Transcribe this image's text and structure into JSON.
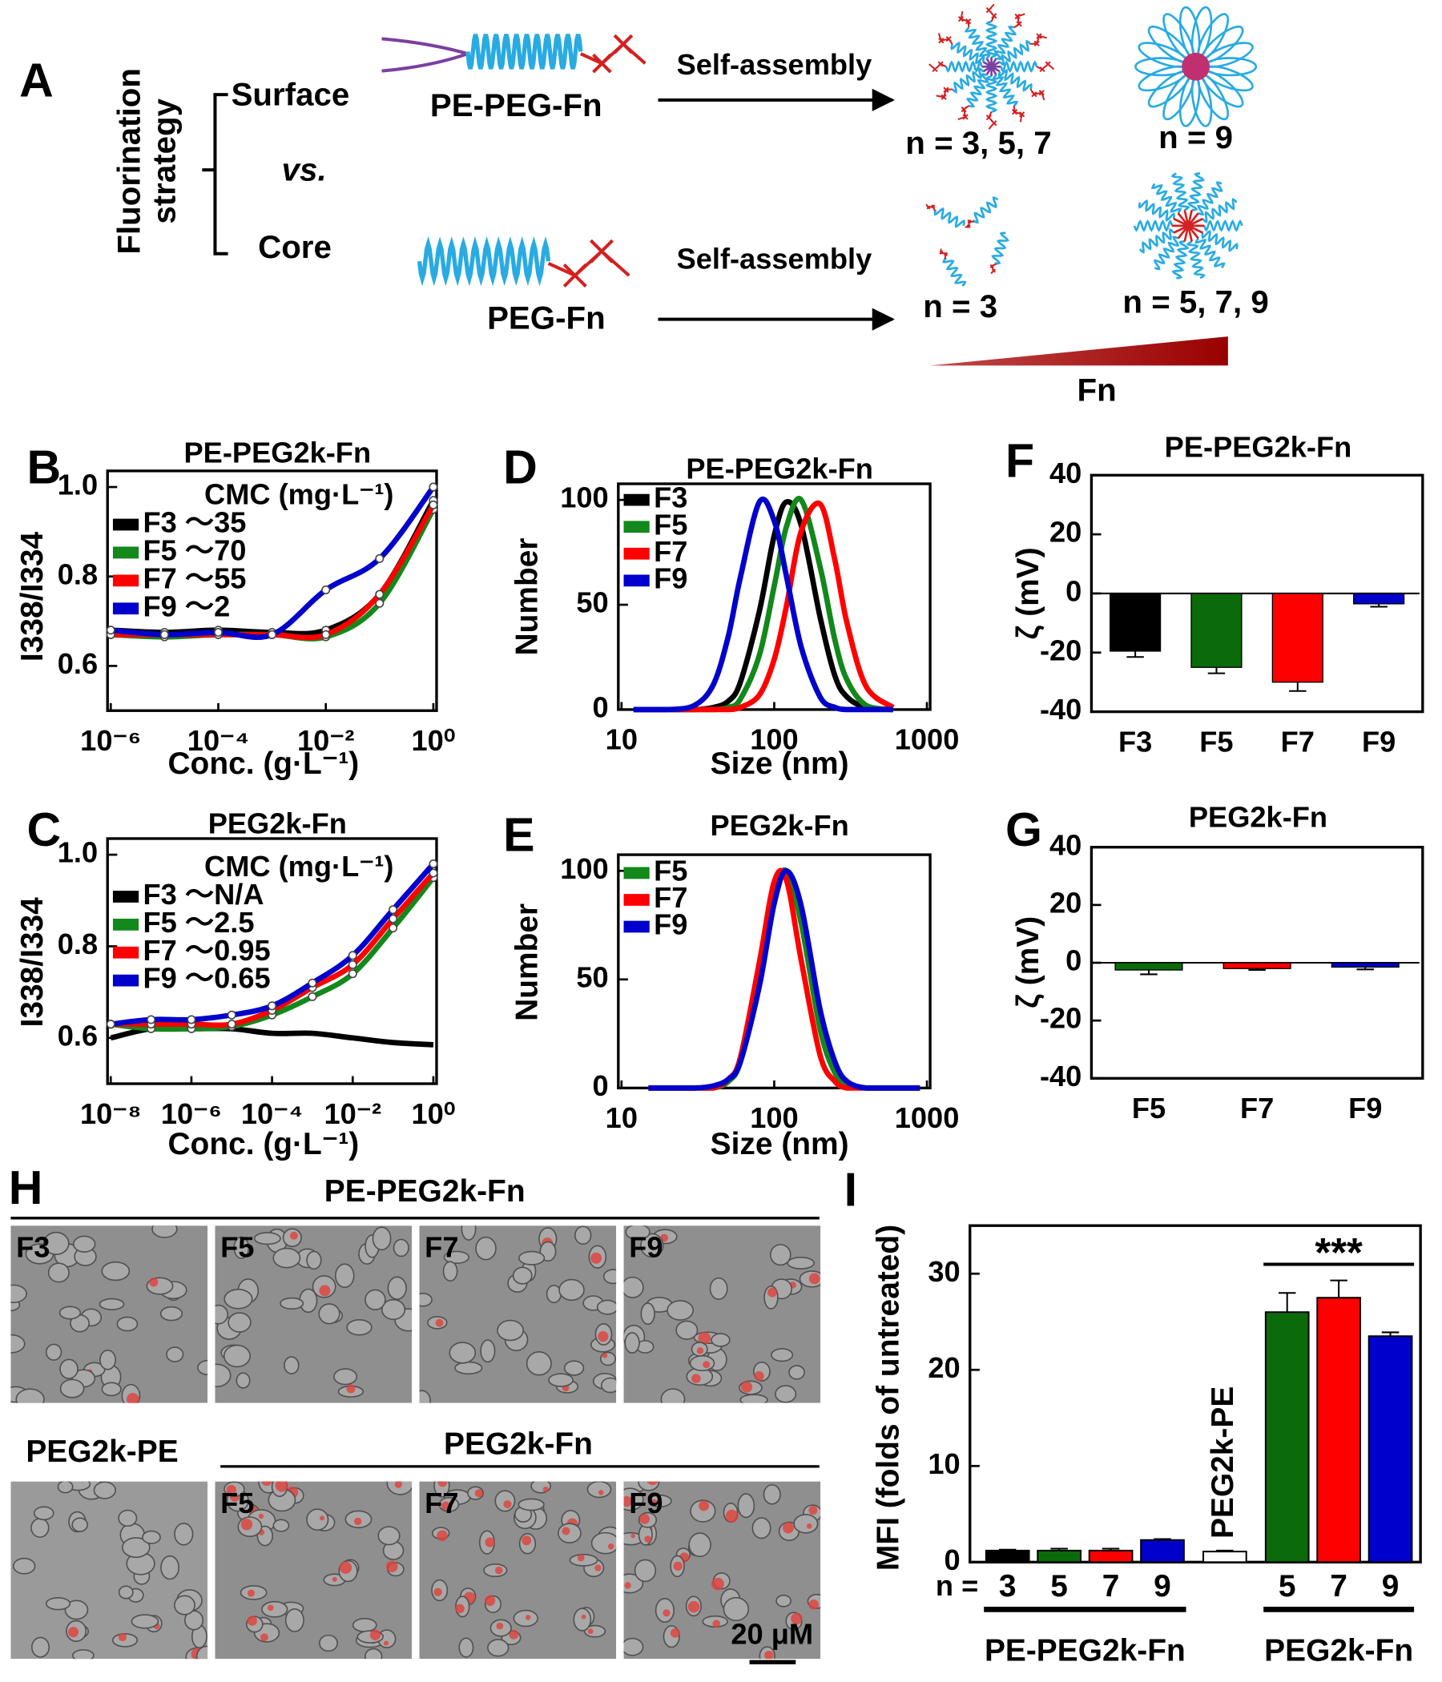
{
  "panel_a": {
    "letter": "A",
    "side_label": [
      "Fluorination",
      "strategy"
    ],
    "options": [
      "Surface",
      "vs.",
      "Core"
    ],
    "molecules": [
      "PE-PEG-Fn",
      "PEG-Fn"
    ],
    "arrow_labels": [
      "Self-assembly",
      "Self-assembly"
    ],
    "outcomes": [
      "n = 3, 5, 7",
      "n = 9",
      "n = 3",
      "n = 5, 7, 9"
    ],
    "gradient_label": "Fn"
  },
  "panel_h": {
    "letter": "H",
    "top_group": "PE-PEG2k-Fn",
    "top_images": [
      "F3",
      "F5",
      "F7",
      "F9"
    ],
    "control": "PEG2k-PE",
    "bottom_group": "PEG2k-Fn",
    "bottom_images": [
      "F5",
      "F7",
      "F9"
    ],
    "scale_bar": "20 μM"
  },
  "chart_data": [
    {
      "panel": "B",
      "type": "line",
      "title": "PE-PEG2k-Fn",
      "xlabel": "Conc. (g·L⁻¹)",
      "ylabel": "I338/I334",
      "log_x": true,
      "x": [
        1e-06,
        1e-05,
        0.0001,
        0.001,
        0.01,
        0.1,
        1
      ],
      "xlim": [
        1e-06,
        1
      ],
      "xticks": [
        {
          "value": 1e-06,
          "label": "10⁻⁶"
        },
        {
          "value": 0.0001,
          "label": "10⁻⁴"
        },
        {
          "value": 0.01,
          "label": "10⁻²"
        },
        {
          "value": 1,
          "label": "10⁰"
        }
      ],
      "ylim": [
        0.5,
        1
      ],
      "yticks": [
        0.6,
        0.8,
        {
          "value": 1,
          "label": "1.0"
        }
      ],
      "legend_title": "CMC (mg·L⁻¹)",
      "series": [
        {
          "name": "F3 ～35",
          "color": "#000000",
          "markers": true,
          "values": [
            0.68,
            0.675,
            0.68,
            0.675,
            0.68,
            0.76,
            0.97
          ]
        },
        {
          "name": "F5 ～70",
          "color": "#13881b",
          "markers": true,
          "values": [
            0.67,
            0.665,
            0.67,
            0.67,
            0.665,
            0.74,
            0.95
          ]
        },
        {
          "name": "F7 ～55",
          "color": "#ff0000",
          "markers": true,
          "values": [
            0.67,
            0.67,
            0.67,
            0.67,
            0.67,
            0.76,
            0.96
          ]
        },
        {
          "name": "F9 ～2",
          "color": "#0000cc",
          "markers": true,
          "values": [
            0.68,
            0.67,
            0.675,
            0.67,
            0.77,
            0.84,
            1
          ]
        }
      ]
    },
    {
      "panel": "C",
      "type": "line",
      "title": "PEG2k-Fn",
      "xlabel": "Conc. (g·L⁻¹)",
      "ylabel": "I338/I334",
      "log_x": true,
      "x": [
        1e-08,
        1e-07,
        1e-06,
        1e-05,
        0.0001,
        0.001,
        0.01,
        0.1,
        1
      ],
      "xlim": [
        1e-08,
        1
      ],
      "xticks": [
        {
          "value": 1e-08,
          "label": "10⁻⁸"
        },
        {
          "value": 1e-06,
          "label": "10⁻⁶"
        },
        {
          "value": 0.0001,
          "label": "10⁻⁴"
        },
        {
          "value": 0.01,
          "label": "10⁻²"
        },
        {
          "value": 1,
          "label": "10⁰"
        }
      ],
      "ylim": [
        0.5,
        1
      ],
      "yticks": [
        0.6,
        0.8,
        {
          "value": 1,
          "label": "1.0"
        }
      ],
      "legend_title": "CMC (mg·L⁻¹)",
      "series": [
        {
          "name": "F3 ～N/A",
          "color": "#000000",
          "markers": false,
          "values": [
            0.6,
            0.62,
            0.62,
            0.62,
            0.61,
            0.61,
            0.6,
            0.59,
            0.585
          ]
        },
        {
          "name": "F5 ～2.5",
          "color": "#13881b",
          "markers": true,
          "values": [
            0.63,
            0.62,
            0.62,
            0.625,
            0.65,
            0.69,
            0.74,
            0.84,
            0.95
          ]
        },
        {
          "name": "F7 ～0.95",
          "color": "#ff0000",
          "markers": true,
          "values": [
            0.63,
            0.63,
            0.63,
            0.63,
            0.66,
            0.71,
            0.76,
            0.86,
            0.96
          ]
        },
        {
          "name": "F9 ～0.65",
          "color": "#0000cc",
          "markers": true,
          "values": [
            0.63,
            0.64,
            0.64,
            0.65,
            0.67,
            0.72,
            0.78,
            0.88,
            0.98
          ]
        }
      ]
    },
    {
      "panel": "D",
      "type": "line",
      "title": "PE-PEG2k-Fn",
      "xlabel": "Size (nm)",
      "ylabel": "Number",
      "log_x": true,
      "x": [
        12,
        20,
        30,
        40,
        50,
        60,
        80,
        100,
        120,
        150,
        200,
        250,
        300,
        400,
        600
      ],
      "xlim": [
        10,
        1000
      ],
      "xticks": [
        10,
        100,
        1000
      ],
      "ylim": [
        0,
        100
      ],
      "yticks": [
        0,
        50,
        100
      ],
      "series": [
        {
          "name": "F3",
          "color": "#000000",
          "markers": false,
          "values": [
            0,
            0,
            0,
            1,
            4,
            13,
            47,
            83,
            99,
            88,
            44,
            16,
            6,
            1,
            0
          ]
        },
        {
          "name": "F5",
          "color": "#13881b",
          "markers": false,
          "values": [
            0,
            0,
            0,
            0,
            1,
            5,
            26,
            59,
            87,
            100,
            68,
            33,
            14,
            2,
            0
          ]
        },
        {
          "name": "F7",
          "color": "#ff0000",
          "markers": false,
          "values": [
            0,
            0,
            0,
            0,
            0,
            1,
            7,
            24,
            49,
            85,
            98,
            71,
            41,
            11,
            1
          ]
        },
        {
          "name": "F9",
          "color": "#0000cc",
          "markers": false,
          "values": [
            0,
            0,
            2,
            12,
            35,
            63,
            99,
            90,
            64,
            30,
            6,
            1,
            0,
            0,
            0
          ]
        }
      ]
    },
    {
      "panel": "E",
      "type": "line",
      "title": "PEG2k-Fn",
      "xlabel": "Size (nm)",
      "ylabel": "Number",
      "log_x": true,
      "x": [
        15,
        20,
        30,
        40,
        50,
        60,
        80,
        100,
        120,
        150,
        200,
        250,
        300,
        400,
        600,
        900
      ],
      "xlim": [
        10,
        1000
      ],
      "xticks": [
        10,
        100,
        1000
      ],
      "ylim": [
        0,
        100
      ],
      "yticks": [
        0,
        50,
        100
      ],
      "series": [
        {
          "name": "F5",
          "color": "#13881b",
          "markers": false,
          "values": [
            0,
            0,
            0,
            0,
            3,
            12,
            49,
            88,
            100,
            76,
            27,
            7,
            2,
            0,
            0,
            0
          ]
        },
        {
          "name": "F7",
          "color": "#ff0000",
          "markers": false,
          "values": [
            0,
            0,
            0,
            0,
            4,
            14,
            58,
            95,
            96,
            59,
            15,
            3,
            0,
            0,
            0,
            0
          ]
        },
        {
          "name": "F9",
          "color": "#0000cc",
          "markers": false,
          "values": [
            0,
            0,
            0,
            1,
            4,
            12,
            47,
            85,
            100,
            84,
            36,
            12,
            3,
            0,
            0,
            0
          ]
        }
      ]
    },
    {
      "panel": "F",
      "type": "bar",
      "title": "PE-PEG2k-Fn",
      "ylabel": "ζ (mV)",
      "categories": [
        "F3",
        "F5",
        "F7",
        "F9"
      ],
      "values": [
        -19.5,
        -25,
        -30,
        -3.5
      ],
      "errors": [
        2,
        2,
        3,
        1
      ],
      "colors": [
        "#000000",
        "#0b6b0b",
        "#ff0000",
        "#0000cc"
      ],
      "ylim": [
        -40,
        40
      ],
      "yticks": [
        -40,
        -20,
        0,
        20,
        40
      ]
    },
    {
      "panel": "G",
      "type": "bar",
      "title": "PEG2k-Fn",
      "ylabel": "ζ (mV)",
      "categories": [
        "F5",
        "F7",
        "F9"
      ],
      "values": [
        -2.5,
        -2,
        -1.5
      ],
      "errors": [
        1.5,
        0.5,
        0.8
      ],
      "colors": [
        "#0b6b0b",
        "#ff0000",
        "#0000cc"
      ],
      "ylim": [
        -40,
        40
      ],
      "yticks": [
        -40,
        -20,
        0,
        20,
        40
      ]
    },
    {
      "panel": "I",
      "type": "grouped_bar",
      "ylabel": "MFI (folds of  untreated)",
      "x_prefix": "n =",
      "ylim": [
        0,
        35
      ],
      "yticks": [
        0,
        10,
        20,
        30
      ],
      "groups": [
        {
          "name": "PE-PEG2k-Fn",
          "categories": [
            "3",
            "5",
            "7",
            "9"
          ],
          "values": [
            1.2,
            1.2,
            1.2,
            2.3
          ],
          "errors": [
            0.1,
            0.2,
            0.2,
            0.1
          ],
          "colors": [
            "#000000",
            "#0b6b0b",
            "#ff0000",
            "#0000cc"
          ]
        },
        {
          "categories": [
            "PEG2k-PE"
          ],
          "values": [
            1.1
          ],
          "errors": [
            0.1
          ],
          "colors": [
            "#ffffff"
          ],
          "label_position": "above"
        },
        {
          "name": "PEG2k-Fn",
          "categories": [
            "5",
            "7",
            "9"
          ],
          "values": [
            26,
            27.5,
            23.5
          ],
          "errors": [
            2,
            1.8,
            0.4
          ],
          "colors": [
            "#0b6b0b",
            "#ff0000",
            "#0000cc"
          ],
          "annotation": "***"
        }
      ]
    }
  ]
}
